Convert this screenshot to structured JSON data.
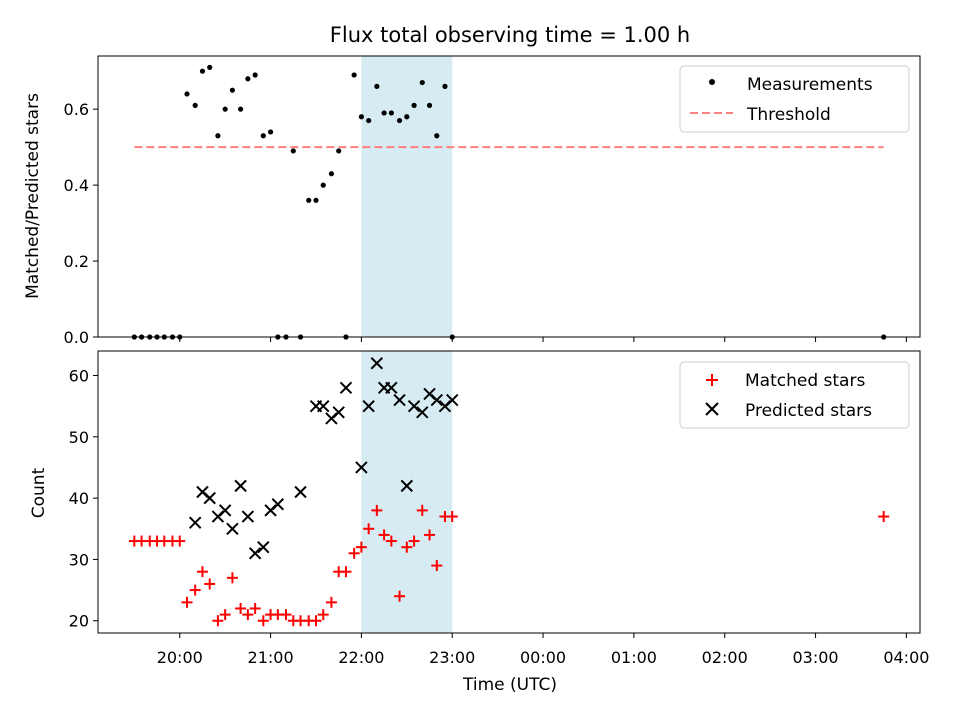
{
  "chart_data": {
    "type": "scatter",
    "title": "Flux total observing time = 1.00 h",
    "xlabel": "Time (UTC)",
    "xtick_labels": [
      "20:00",
      "21:00",
      "22:00",
      "23:00",
      "00:00",
      "01:00",
      "02:00",
      "03:00",
      "04:00"
    ],
    "shaded_interval": [
      "22:00",
      "23:00"
    ],
    "shaded_color": "#add8e6",
    "x_unit": "hours after 20:00 UTC",
    "panels": [
      {
        "ylabel": "Matched/Predicted stars",
        "ylim": [
          0,
          0.74
        ],
        "yticks": [
          "0.0",
          "0.2",
          "0.4",
          "0.6"
        ],
        "legend": {
          "position": "top-right",
          "entries": [
            "Measurements",
            "Threshold"
          ]
        },
        "threshold": {
          "name": "Threshold",
          "value": 0.5,
          "x_range": [
            -0.5,
            7.75
          ],
          "color": "#ff7f7f"
        },
        "series": [
          {
            "name": "Measurements",
            "marker": "dot",
            "color": "#000000",
            "x": [
              -0.5,
              -0.42,
              -0.33,
              -0.25,
              -0.17,
              -0.08,
              0.0,
              0.08,
              0.17,
              0.25,
              0.33,
              0.42,
              0.5,
              0.58,
              0.67,
              0.75,
              0.83,
              0.92,
              1.0,
              1.08,
              1.17,
              1.25,
              1.33,
              1.42,
              1.5,
              1.58,
              1.67,
              1.75,
              1.83,
              1.92,
              2.0,
              2.08,
              2.17,
              2.25,
              2.33,
              2.42,
              2.5,
              2.58,
              2.67,
              2.75,
              2.83,
              2.92,
              3.0,
              7.75
            ],
            "y": [
              0,
              0,
              0,
              0,
              0,
              0,
              0,
              0.64,
              0.61,
              0.7,
              0.71,
              0.53,
              0.6,
              0.65,
              0.6,
              0.68,
              0.69,
              0.53,
              0.54,
              0,
              0,
              0.49,
              0,
              0.36,
              0.36,
              0.4,
              0.43,
              0.49,
              0,
              0.69,
              0.58,
              0.57,
              0.66,
              0.59,
              0.59,
              0.57,
              0.58,
              0.61,
              0.67,
              0.61,
              0.53,
              0.66,
              0,
              0
            ]
          }
        ]
      },
      {
        "ylabel": "Count",
        "ylim": [
          18,
          64
        ],
        "yticks": [
          "20",
          "30",
          "40",
          "50",
          "60"
        ],
        "legend": {
          "position": "top-right",
          "entries": [
            "Matched stars",
            "Predicted stars"
          ]
        },
        "series": [
          {
            "name": "Matched stars",
            "marker": "plus",
            "color": "#ff0000",
            "x": [
              -0.5,
              -0.42,
              -0.33,
              -0.25,
              -0.17,
              -0.08,
              0.0,
              0.08,
              0.17,
              0.25,
              0.33,
              0.42,
              0.5,
              0.58,
              0.67,
              0.75,
              0.83,
              0.92,
              1.0,
              1.08,
              1.17,
              1.25,
              1.33,
              1.42,
              1.5,
              1.58,
              1.67,
              1.75,
              1.83,
              1.92,
              2.0,
              2.08,
              2.17,
              2.25,
              2.33,
              2.42,
              2.5,
              2.58,
              2.67,
              2.75,
              2.83,
              2.92,
              3.0,
              7.75
            ],
            "y": [
              33,
              33,
              33,
              33,
              33,
              33,
              33,
              23,
              25,
              28,
              26,
              20,
              21,
              27,
              22,
              21,
              22,
              20,
              21,
              21,
              21,
              20,
              20,
              20,
              20,
              21,
              23,
              28,
              28,
              31,
              32,
              35,
              38,
              34,
              33,
              24,
              32,
              33,
              38,
              34,
              29,
              37,
              37,
              37
            ]
          },
          {
            "name": "Predicted stars",
            "marker": "x",
            "color": "#000000",
            "x": [
              0.17,
              0.25,
              0.33,
              0.42,
              0.5,
              0.58,
              0.67,
              0.75,
              0.83,
              0.92,
              1.0,
              1.08,
              1.33,
              1.5,
              1.58,
              1.67,
              1.75,
              1.83,
              2.0,
              2.08,
              2.17,
              2.25,
              2.33,
              2.42,
              2.5,
              2.58,
              2.67,
              2.75,
              2.83,
              2.92,
              3.0
            ],
            "y": [
              36,
              41,
              40,
              37,
              38,
              35,
              42,
              37,
              31,
              32,
              38,
              39,
              41,
              55,
              55,
              53,
              54,
              58,
              45,
              55,
              62,
              58,
              58,
              56,
              42,
              55,
              54,
              57,
              56,
              55,
              56
            ]
          }
        ]
      }
    ]
  }
}
